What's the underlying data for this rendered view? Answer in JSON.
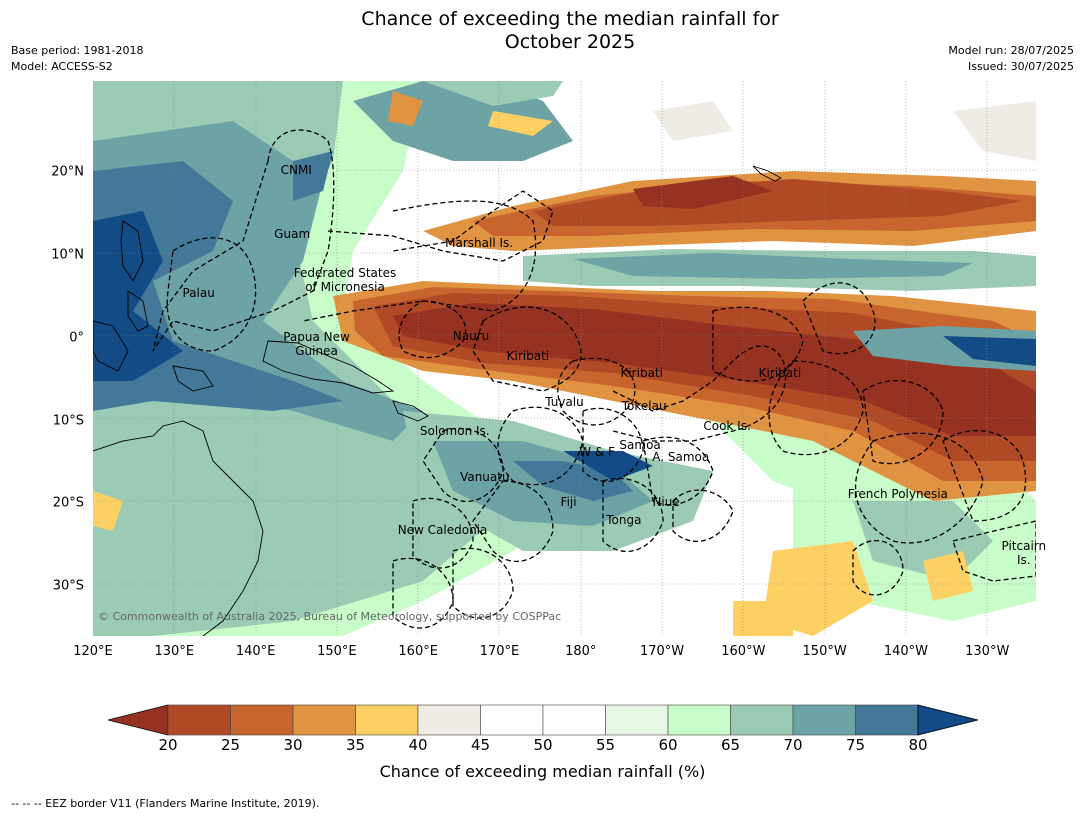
{
  "title_line1": "Chance of exceeding the median rainfall for",
  "title_line2": "October 2025",
  "meta": {
    "base_period": "Base period: 1981-2018",
    "model": "Model: ACCESS-S2",
    "model_run": "Model run: 28/07/2025",
    "issued": "Issued: 30/07/2025"
  },
  "axes": {
    "lon_range": [
      120,
      236
    ],
    "lat_range": [
      -36,
      31
    ],
    "lon_ticks": [
      {
        "value": 120,
        "label": "120°E"
      },
      {
        "value": 130,
        "label": "130°E"
      },
      {
        "value": 140,
        "label": "140°E"
      },
      {
        "value": 150,
        "label": "150°E"
      },
      {
        "value": 160,
        "label": "160°E"
      },
      {
        "value": 170,
        "label": "170°E"
      },
      {
        "value": 180,
        "label": "180°"
      },
      {
        "value": 190,
        "label": "170°W"
      },
      {
        "value": 200,
        "label": "160°W"
      },
      {
        "value": 210,
        "label": "150°W"
      },
      {
        "value": 220,
        "label": "140°W"
      },
      {
        "value": 230,
        "label": "130°W"
      }
    ],
    "lat_ticks": [
      {
        "value": 20,
        "label": "20°N"
      },
      {
        "value": 10,
        "label": "10°N"
      },
      {
        "value": 0,
        "label": "0°"
      },
      {
        "value": -10,
        "label": "10°S"
      },
      {
        "value": -20,
        "label": "20°S"
      },
      {
        "value": -30,
        "label": "30°S"
      }
    ]
  },
  "labels": [
    {
      "text": "CNMI",
      "lon": 145.0,
      "lat": 20.2
    },
    {
      "text": "Guam",
      "lon": 144.5,
      "lat": 12.5
    },
    {
      "text": "Marshall Is.",
      "lon": 167.5,
      "lat": 11.5
    },
    {
      "text": "Federated States\nof Micronesia",
      "lon": 151.0,
      "lat": 7.0
    },
    {
      "text": "Palau",
      "lon": 133.0,
      "lat": 5.4
    },
    {
      "text": "Nauru",
      "lon": 166.5,
      "lat": 0.2
    },
    {
      "text": "Papua New\nGuinea",
      "lon": 147.5,
      "lat": -0.8
    },
    {
      "text": "Kiribati",
      "lon": 173.5,
      "lat": -2.2
    },
    {
      "text": "Kiribati",
      "lon": 187.5,
      "lat": -4.2
    },
    {
      "text": "Kiribati",
      "lon": 204.5,
      "lat": -4.2
    },
    {
      "text": "Tuvalu",
      "lon": 178.0,
      "lat": -7.8
    },
    {
      "text": "Tokelau",
      "lon": 187.8,
      "lat": -8.2
    },
    {
      "text": "Solomon Is.",
      "lon": 164.5,
      "lat": -11.2
    },
    {
      "text": "Cook Is.",
      "lon": 198.0,
      "lat": -10.7
    },
    {
      "text": "Samoa",
      "lon": 187.3,
      "lat": -13.0
    },
    {
      "text": "W & F",
      "lon": 182.0,
      "lat": -13.8
    },
    {
      "text": "A. Samoa",
      "lon": 192.3,
      "lat": -14.4
    },
    {
      "text": "Vanuatu",
      "lon": 168.2,
      "lat": -16.8
    },
    {
      "text": "French Polynesia",
      "lon": 219.0,
      "lat": -18.8
    },
    {
      "text": "Fiji",
      "lon": 178.5,
      "lat": -19.8
    },
    {
      "text": "Niue",
      "lon": 190.5,
      "lat": -19.8
    },
    {
      "text": "Tonga",
      "lon": 185.3,
      "lat": -22.0
    },
    {
      "text": "New Caledonia",
      "lon": 163.0,
      "lat": -23.2
    },
    {
      "text": "Pitcairn\nIs.",
      "lon": 234.5,
      "lat": -26.0
    }
  ],
  "copyright": "© Commonwealth of Australia 2025, Bureau of Meteorology, supported by COSPPac",
  "colorbar": {
    "label": "Chance of exceeding median rainfall (%)",
    "ticks": [
      "20",
      "25",
      "30",
      "35",
      "40",
      "45",
      "50",
      "55",
      "60",
      "65",
      "70",
      "75",
      "80"
    ],
    "under_color": "#963222",
    "over_color": "#124b85",
    "colors": [
      "#b04a26",
      "#c8652f",
      "#e09442",
      "#fdd064",
      "#efece6",
      "#ffffff",
      "#ffffff",
      "#e7f6e5",
      "#c8fcc9",
      "#9bcbb4",
      "#6ea3a5",
      "#437898"
    ]
  },
  "footnote": "--  --  -- EEZ border V11 (Flanders Marine Institute, 2019)."
}
